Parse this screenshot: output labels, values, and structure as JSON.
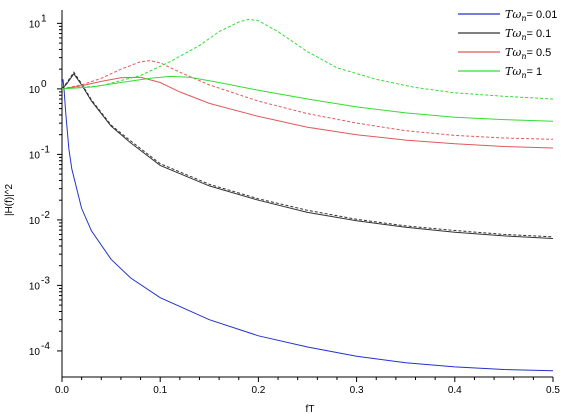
{
  "chart_data": {
    "type": "line",
    "title": "",
    "xlabel": "fT",
    "ylabel": "|H(f)|^2",
    "xlim": [
      0,
      0.5
    ],
    "ylim": [
      4e-05,
      16
    ],
    "yscale": "log",
    "grid": false,
    "legend_position": "top-right",
    "x_ticks": [
      "0.0",
      "0.1",
      "0.2",
      "0.3",
      "0.4",
      "0.5"
    ],
    "y_ticks": [
      {
        "base": "10",
        "exp": "-4"
      },
      {
        "base": "10",
        "exp": "-3"
      },
      {
        "base": "10",
        "exp": "-2"
      },
      {
        "base": "10",
        "exp": "-1"
      },
      {
        "base": "10",
        "exp": "0"
      },
      {
        "base": "10",
        "exp": "1"
      }
    ],
    "series": [
      {
        "name": "Tω_n = 0.01",
        "legend_sym": "Tω",
        "legend_sub": "n",
        "legend_val": "= 0.01",
        "color": "#2233cc",
        "dashed_color": "#2233cc",
        "solid": [
          [
            0.0,
            1.2
          ],
          [
            0.001,
            1.4
          ],
          [
            0.002,
            1.0
          ],
          [
            0.004,
            0.4
          ],
          [
            0.007,
            0.12
          ],
          [
            0.01,
            0.06
          ],
          [
            0.02,
            0.015
          ],
          [
            0.03,
            0.0068
          ],
          [
            0.05,
            0.0025
          ],
          [
            0.07,
            0.0013
          ],
          [
            0.1,
            0.00065
          ],
          [
            0.15,
            0.0003
          ],
          [
            0.2,
            0.00017
          ],
          [
            0.25,
            0.000115
          ],
          [
            0.3,
            8.3e-05
          ],
          [
            0.35,
            6.6e-05
          ],
          [
            0.4,
            5.7e-05
          ],
          [
            0.45,
            5.2e-05
          ],
          [
            0.5,
            5e-05
          ]
        ],
        "dashed": []
      },
      {
        "name": "Tω_n = 0.1",
        "legend_sym": "Tω",
        "legend_sub": "n",
        "legend_val": "= 0.1",
        "color": "#333333",
        "dashed_color": "#333333",
        "solid": [
          [
            0.0,
            1.0
          ],
          [
            0.005,
            1.2
          ],
          [
            0.012,
            1.7
          ],
          [
            0.02,
            1.15
          ],
          [
            0.03,
            0.65
          ],
          [
            0.05,
            0.27
          ],
          [
            0.07,
            0.15
          ],
          [
            0.1,
            0.068
          ],
          [
            0.15,
            0.033
          ],
          [
            0.2,
            0.02
          ],
          [
            0.25,
            0.013
          ],
          [
            0.3,
            0.0097
          ],
          [
            0.35,
            0.0077
          ],
          [
            0.4,
            0.0065
          ],
          [
            0.45,
            0.0057
          ],
          [
            0.5,
            0.0052
          ]
        ],
        "dashed": [
          [
            0.0,
            1.0
          ],
          [
            0.005,
            1.25
          ],
          [
            0.012,
            1.8
          ],
          [
            0.02,
            1.2
          ],
          [
            0.03,
            0.68
          ],
          [
            0.05,
            0.28
          ],
          [
            0.07,
            0.16
          ],
          [
            0.1,
            0.072
          ],
          [
            0.15,
            0.035
          ],
          [
            0.2,
            0.021
          ],
          [
            0.25,
            0.014
          ],
          [
            0.3,
            0.0102
          ],
          [
            0.35,
            0.0081
          ],
          [
            0.4,
            0.0069
          ],
          [
            0.45,
            0.006
          ],
          [
            0.5,
            0.0055
          ]
        ]
      },
      {
        "name": "Tω_n = 0.5",
        "legend_sym": "Tω",
        "legend_sub": "n",
        "legend_val": "= 0.5",
        "color": "#e05a5a",
        "dashed_color": "#e05a5a",
        "solid": [
          [
            0.0,
            1.0
          ],
          [
            0.02,
            1.12
          ],
          [
            0.04,
            1.3
          ],
          [
            0.06,
            1.48
          ],
          [
            0.08,
            1.5
          ],
          [
            0.1,
            1.25
          ],
          [
            0.12,
            0.9
          ],
          [
            0.15,
            0.6
          ],
          [
            0.2,
            0.38
          ],
          [
            0.25,
            0.26
          ],
          [
            0.3,
            0.2
          ],
          [
            0.35,
            0.165
          ],
          [
            0.4,
            0.145
          ],
          [
            0.45,
            0.132
          ],
          [
            0.5,
            0.125
          ]
        ],
        "dashed": [
          [
            0.0,
            1.0
          ],
          [
            0.02,
            1.15
          ],
          [
            0.04,
            1.45
          ],
          [
            0.06,
            2.0
          ],
          [
            0.08,
            2.6
          ],
          [
            0.09,
            2.7
          ],
          [
            0.1,
            2.5
          ],
          [
            0.12,
            1.8
          ],
          [
            0.15,
            1.15
          ],
          [
            0.2,
            0.65
          ],
          [
            0.25,
            0.42
          ],
          [
            0.3,
            0.3
          ],
          [
            0.35,
            0.23
          ],
          [
            0.4,
            0.195
          ],
          [
            0.45,
            0.178
          ],
          [
            0.5,
            0.17
          ]
        ]
      },
      {
        "name": "Tω_n = 1",
        "legend_sym": "Tω",
        "legend_sub": "n",
        "legend_val": "= 1",
        "color": "#33dd33",
        "dashed_color": "#33dd33",
        "solid": [
          [
            0.0,
            1.0
          ],
          [
            0.03,
            1.07
          ],
          [
            0.06,
            1.25
          ],
          [
            0.09,
            1.45
          ],
          [
            0.11,
            1.55
          ],
          [
            0.13,
            1.5
          ],
          [
            0.16,
            1.25
          ],
          [
            0.2,
            0.95
          ],
          [
            0.25,
            0.7
          ],
          [
            0.3,
            0.53
          ],
          [
            0.35,
            0.43
          ],
          [
            0.4,
            0.37
          ],
          [
            0.45,
            0.34
          ],
          [
            0.5,
            0.32
          ]
        ],
        "dashed": [
          [
            0.0,
            1.0
          ],
          [
            0.04,
            1.12
          ],
          [
            0.08,
            1.6
          ],
          [
            0.11,
            2.6
          ],
          [
            0.14,
            4.6
          ],
          [
            0.16,
            7.5
          ],
          [
            0.18,
            10.5
          ],
          [
            0.19,
            11.5
          ],
          [
            0.2,
            11.0
          ],
          [
            0.22,
            7.5
          ],
          [
            0.25,
            3.7
          ],
          [
            0.28,
            2.1
          ],
          [
            0.32,
            1.4
          ],
          [
            0.36,
            1.05
          ],
          [
            0.4,
            0.87
          ],
          [
            0.45,
            0.77
          ],
          [
            0.5,
            0.7
          ]
        ]
      }
    ]
  }
}
